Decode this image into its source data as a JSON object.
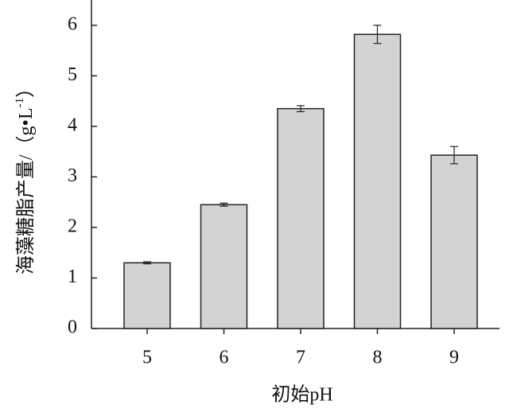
{
  "chart_data": {
    "type": "bar",
    "x_label": "初始pH",
    "y_label": {
      "main": "海藻糖脂产量/（g•L",
      "sup": "-1",
      "end": "）"
    },
    "categories": [
      "5",
      "6",
      "7",
      "8",
      "9"
    ],
    "values": [
      1.3,
      2.45,
      4.35,
      5.82,
      3.43
    ],
    "errors": [
      0.02,
      0.03,
      0.06,
      0.18,
      0.17
    ],
    "color": "#d3d3d3",
    "ylim": [
      0,
      6.5
    ],
    "yticks": [
      0,
      1,
      2,
      3,
      4,
      5,
      6
    ],
    "grid": false
  }
}
